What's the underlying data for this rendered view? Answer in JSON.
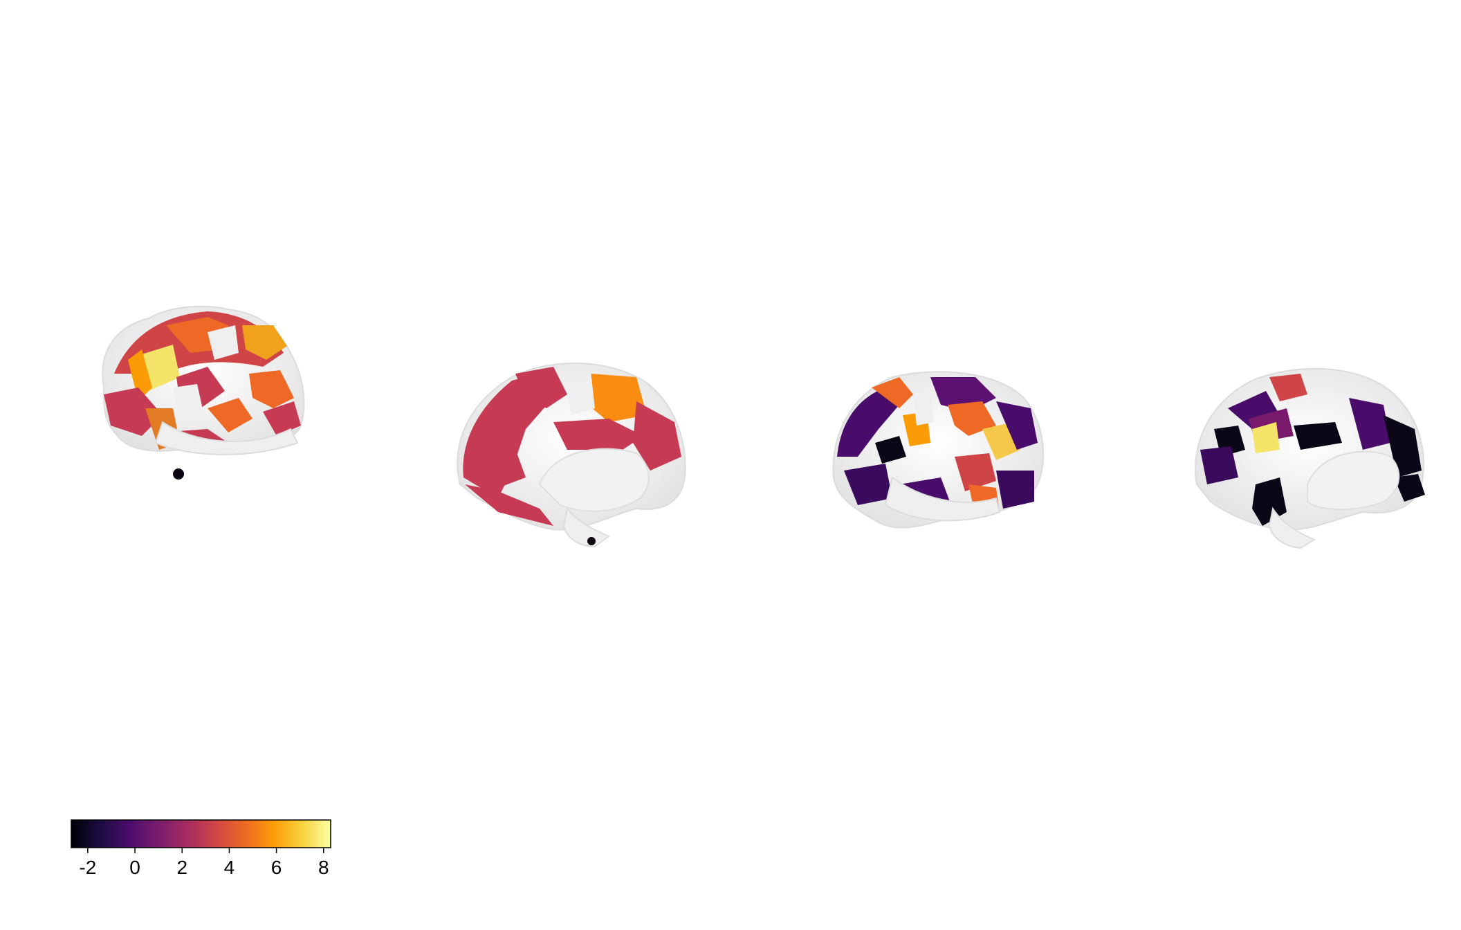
{
  "figure": {
    "views": [
      {
        "id": "left-lateral",
        "hemisphere": "left",
        "view": "lateral"
      },
      {
        "id": "left-medial",
        "hemisphere": "left",
        "view": "medial"
      },
      {
        "id": "right-lateral",
        "hemisphere": "right",
        "view": "lateral"
      },
      {
        "id": "right-medial",
        "hemisphere": "right",
        "view": "medial"
      }
    ],
    "background_color": "#ffffff",
    "unlabeled_surface_color": "#efefef"
  },
  "colorbar": {
    "colormap": "inferno",
    "min": -2.7,
    "max": 8.3,
    "ticks": [
      "-2",
      "0",
      "2",
      "4",
      "6",
      "8"
    ],
    "tick_values": [
      -2,
      0,
      2,
      4,
      6,
      8
    ],
    "stops": [
      "#000004",
      "#1b0c41",
      "#4a0c6b",
      "#781c6d",
      "#a52c60",
      "#cf4446",
      "#ed6925",
      "#fb9b06",
      "#f7d13d",
      "#fcffa4"
    ]
  }
}
